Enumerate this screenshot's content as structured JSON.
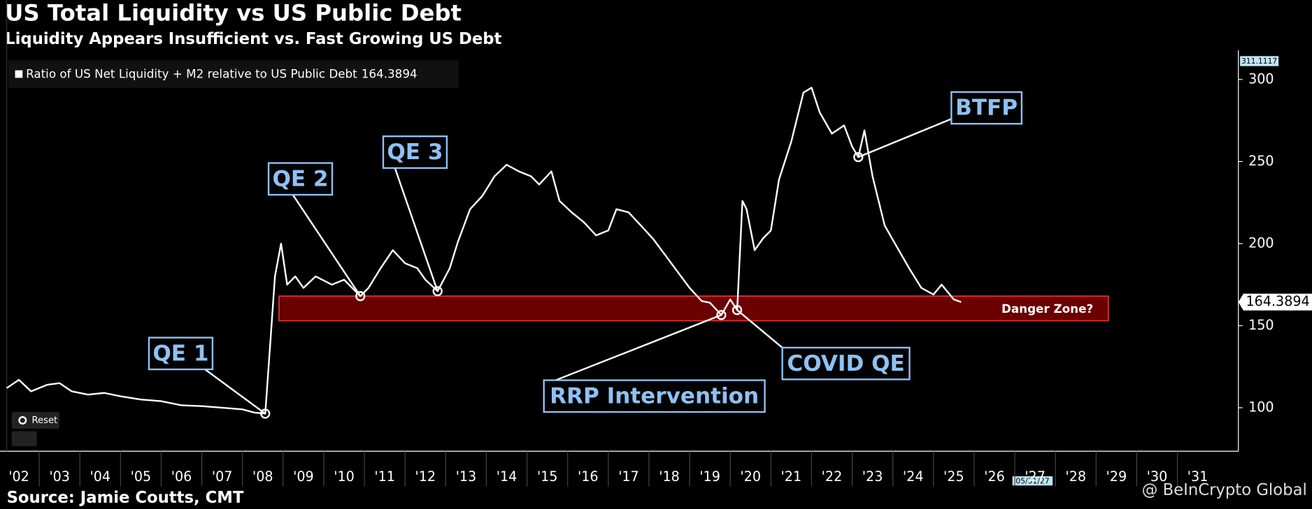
{
  "chart_data": {
    "type": "line",
    "title": "US Total Liquidity vs US Public Debt",
    "subtitle": "Liquidity Appears Insufficient vs. Fast Growing US Debt",
    "source": "Source: Jamie Coutts, CMT",
    "watermark": "@ BeInCrypto Global",
    "reset_button": "Reset",
    "top_marker": 311.1117,
    "date_marker": "05/31/27",
    "x": [
      2002.2,
      2002.5,
      2002.8,
      2003.2,
      2003.5,
      2003.8,
      2004.2,
      2004.6,
      2005.0,
      2005.5,
      2006.0,
      2006.5,
      2007.0,
      2007.5,
      2008.0,
      2008.3,
      2008.56,
      2008.7,
      2008.8,
      2008.95,
      2009.1,
      2009.3,
      2009.5,
      2009.8,
      2010.2,
      2010.5,
      2010.9,
      2011.1,
      2011.4,
      2011.7,
      2012.0,
      2012.3,
      2012.5,
      2012.8,
      2013.1,
      2013.3,
      2013.6,
      2013.9,
      2014.2,
      2014.5,
      2014.8,
      2015.1,
      2015.3,
      2015.6,
      2015.8,
      2016.1,
      2016.4,
      2016.7,
      2017.0,
      2017.2,
      2017.5,
      2017.8,
      2018.1,
      2018.4,
      2018.7,
      2019.0,
      2019.3,
      2019.5,
      2019.78,
      2020.0,
      2020.17,
      2020.3,
      2020.4,
      2020.6,
      2020.8,
      2021.0,
      2021.2,
      2021.5,
      2021.8,
      2022.0,
      2022.2,
      2022.5,
      2022.8,
      2023.0,
      2023.15,
      2023.3,
      2023.5,
      2023.8,
      2024.1,
      2024.4,
      2024.7,
      2025.0,
      2025.2,
      2025.5,
      2025.68
    ],
    "series": [
      {
        "name": "Ratio of US Net Liquidity + M2 relative to US Public Debt",
        "color": "#ffffff",
        "values": [
          112,
          117,
          110,
          114,
          115,
          110,
          108,
          109,
          107,
          105,
          104,
          101.5,
          101,
          100,
          99,
          97,
          96.4,
          145,
          180,
          200,
          175,
          180,
          173,
          180,
          175,
          178,
          168,
          173,
          185,
          196,
          188,
          185,
          178,
          171,
          185,
          201,
          221,
          229,
          241,
          248,
          244,
          241,
          236,
          244,
          226,
          219,
          213,
          205,
          208,
          221,
          219,
          211,
          203,
          193,
          183,
          173,
          165,
          164,
          156.5,
          166,
          159.5,
          226,
          221,
          196,
          203,
          208,
          239,
          262,
          292,
          295,
          280,
          267,
          272,
          259,
          252.7,
          269,
          241,
          211,
          198,
          185,
          173,
          169,
          175,
          166,
          164.3894
        ]
      }
    ],
    "danger_zone": {
      "label": "Danger Zone?",
      "x": [
        2008.9,
        2029.3
      ],
      "y": [
        153,
        168
      ],
      "color": "#6b0000"
    },
    "annotations": [
      "QE 1",
      "QE 2",
      "QE 3",
      "BTFP",
      "RRP Intervention",
      "COVID QE"
    ],
    "xlim": [
      2002.2,
      2032.5
    ],
    "ylim": [
      73.5,
      317.8
    ],
    "yticks": [
      100,
      150,
      200,
      250,
      300
    ],
    "xticks": [
      {
        "value": 2002,
        "label": "'02"
      },
      {
        "value": 2003,
        "label": "'03"
      },
      {
        "value": 2004,
        "label": "'04"
      },
      {
        "value": 2005,
        "label": "'05"
      },
      {
        "value": 2006,
        "label": "'06"
      },
      {
        "value": 2007,
        "label": "'07"
      },
      {
        "value": 2008,
        "label": "'08"
      },
      {
        "value": 2009,
        "label": "'09"
      },
      {
        "value": 2010,
        "label": "'10"
      },
      {
        "value": 2011,
        "label": "'11"
      },
      {
        "value": 2012,
        "label": "'12"
      },
      {
        "value": 2013,
        "label": "'13"
      },
      {
        "value": 2014,
        "label": "'14"
      },
      {
        "value": 2015,
        "label": "'15"
      },
      {
        "value": 2016,
        "label": "'16"
      },
      {
        "value": 2017,
        "label": "'17"
      },
      {
        "value": 2018,
        "label": "'18"
      },
      {
        "value": 2019,
        "label": "'19"
      },
      {
        "value": 2020,
        "label": "'20"
      },
      {
        "value": 2021,
        "label": "'21"
      },
      {
        "value": 2022,
        "label": "'22"
      },
      {
        "value": 2023,
        "label": "'23"
      },
      {
        "value": 2024,
        "label": "'24"
      },
      {
        "value": 2025,
        "label": "'25"
      },
      {
        "value": 2026,
        "label": "'26"
      },
      {
        "value": 2027,
        "label": "'27"
      },
      {
        "value": 2028,
        "label": "'28"
      },
      {
        "value": 2029,
        "label": "'29"
      },
      {
        "value": 2030,
        "label": "'30"
      },
      {
        "value": 2031,
        "label": "'31"
      }
    ]
  }
}
